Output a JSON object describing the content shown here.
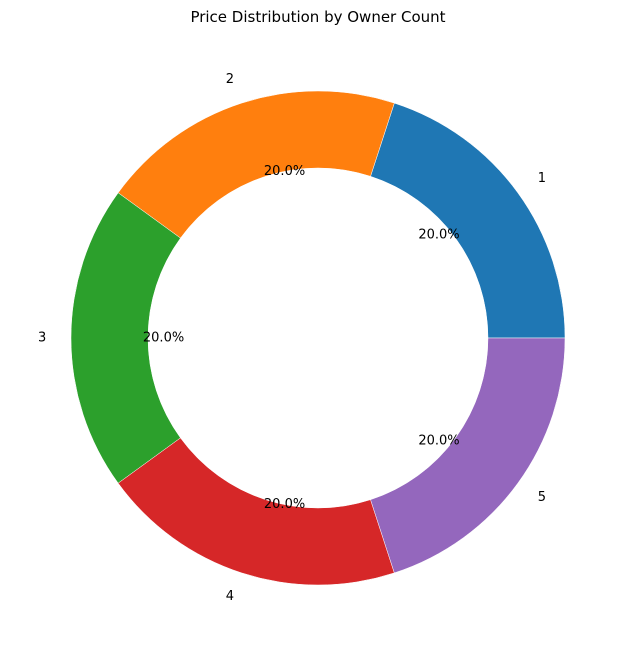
{
  "chart_data": {
    "type": "pie",
    "title": "Price Distribution by Owner Count",
    "categories": [
      "1",
      "2",
      "3",
      "4",
      "5"
    ],
    "values": [
      20,
      20,
      20,
      20,
      20
    ],
    "percent_labels": [
      "20.0%",
      "20.0%",
      "20.0%",
      "20.0%",
      "20.0%"
    ],
    "colors": [
      "#1f77b4",
      "#ff7f0e",
      "#2ca02c",
      "#d62728",
      "#9467bd"
    ],
    "donut": true,
    "start_angle_deg": 0,
    "direction": "counterclockwise",
    "legend": "none"
  }
}
